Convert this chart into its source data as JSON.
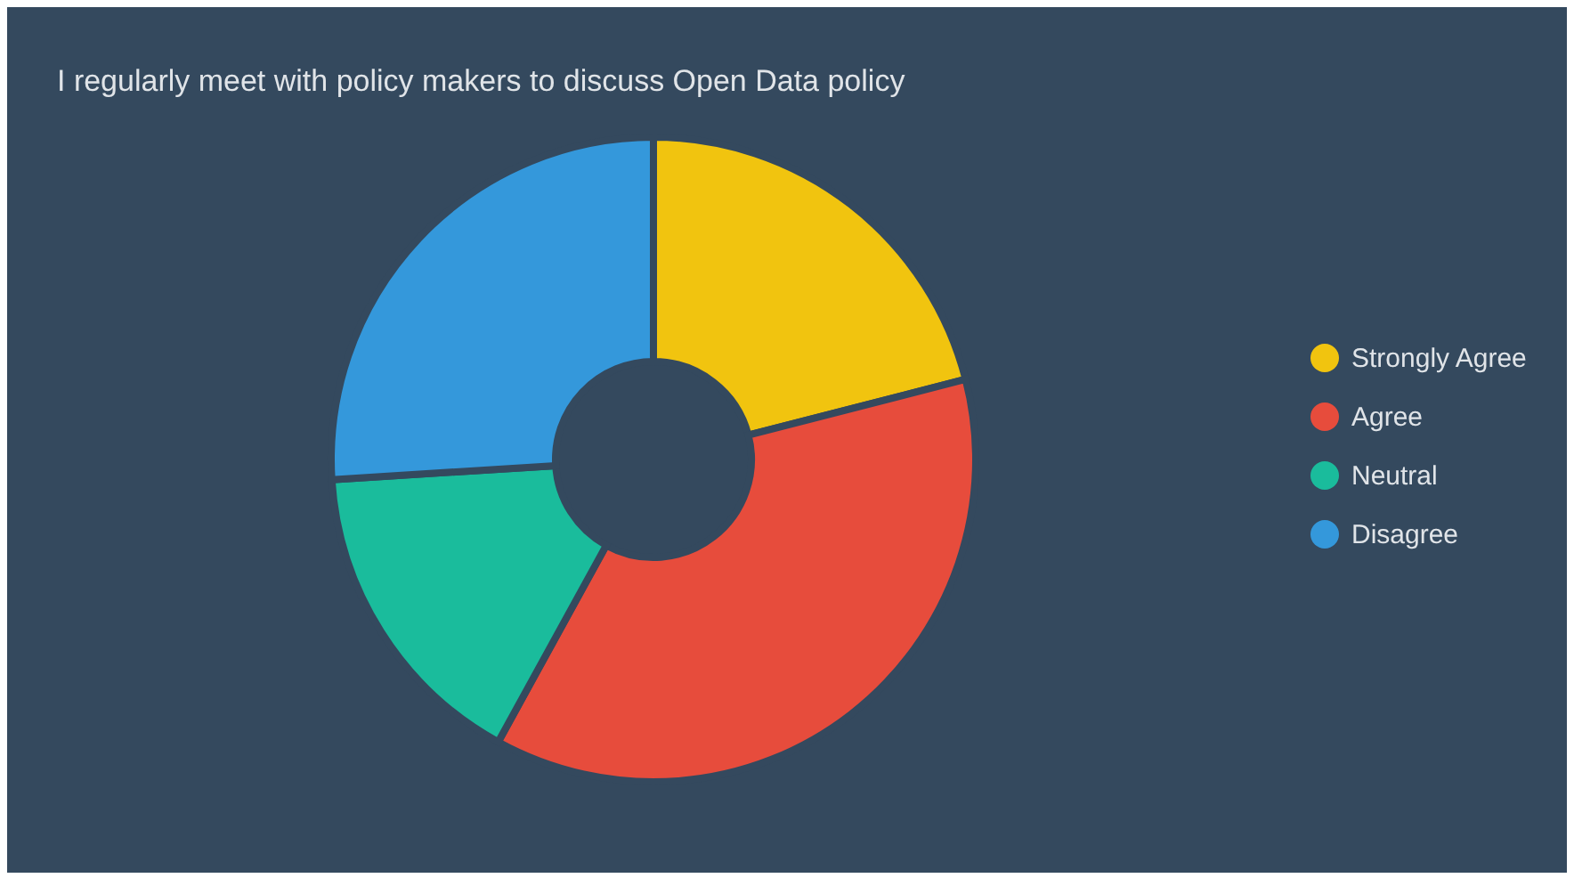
{
  "chart_data": {
    "type": "donut",
    "title": "I regularly meet with policy makers to discuss Open Data policy",
    "categories": [
      "Strongly Agree",
      "Agree",
      "Neutral",
      "Disagree"
    ],
    "values": [
      21,
      37,
      16,
      26
    ],
    "colors": [
      "#f1c40f",
      "#e74c3c",
      "#1abc9c",
      "#3498db"
    ],
    "legend": "right"
  }
}
